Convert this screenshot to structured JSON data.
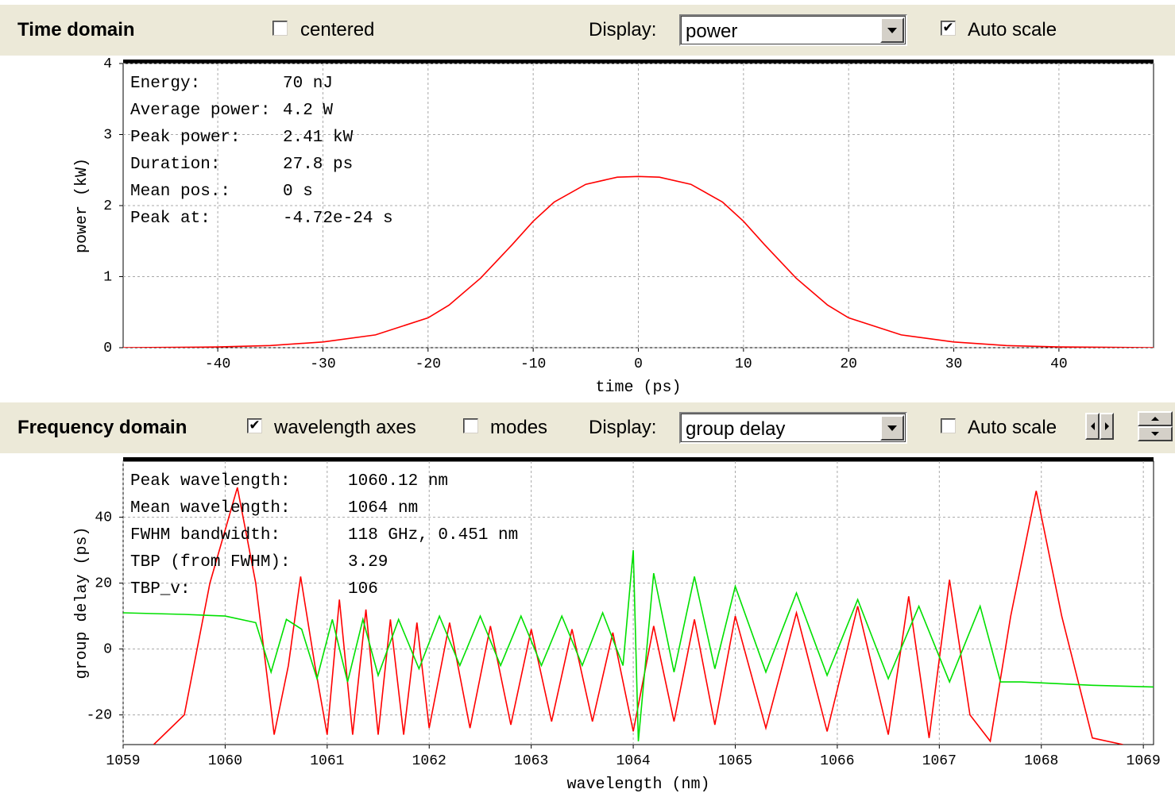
{
  "time_domain": {
    "title": "Time domain",
    "centered": {
      "label": "centered",
      "checked": false
    },
    "display_label": "Display:",
    "display_value": "power",
    "autoscale": {
      "label": "Auto scale",
      "checked": true
    }
  },
  "frequency_domain": {
    "title": "Frequency domain",
    "wavelength_axes": {
      "label": "wavelength axes",
      "checked": true
    },
    "modes": {
      "label": "modes",
      "checked": false
    },
    "display_label": "Display:",
    "display_value": "group delay",
    "autoscale": {
      "label": "Auto scale",
      "checked": false
    },
    "icons": [
      "arrow-left-right-icon",
      "arrow-up-down-icon"
    ]
  },
  "time_info": [
    [
      "Energy:",
      "70 nJ"
    ],
    [
      "Average power:",
      "4.2 W"
    ],
    [
      "Peak power:",
      "2.41 kW"
    ],
    [
      "Duration:",
      "27.8 ps"
    ],
    [
      "Mean pos.:",
      "0 s"
    ],
    [
      "Peak at:",
      "-4.72e-24 s"
    ]
  ],
  "freq_info": [
    [
      "Peak wavelength:",
      "1060.12 nm"
    ],
    [
      "Mean wavelength:",
      "1064 nm"
    ],
    [
      "FWHM bandwidth:",
      "118 GHz, 0.451 nm"
    ],
    [
      "TBP (from FWHM):",
      "3.29"
    ],
    [
      "TBP_v:",
      "106"
    ]
  ],
  "colors": {
    "power_trace": "#ff0000",
    "spectrum_trace": "#ff0000",
    "group_delay_trace": "#00e000",
    "toolbar_bg": "#ece9d8",
    "grid": "#a0a0a0"
  },
  "chart_data": [
    {
      "type": "line",
      "xlabel": "time (ps)",
      "ylabel": "power (kW)",
      "xlim": [
        -49,
        49
      ],
      "ylim": [
        0,
        4
      ],
      "x_ticks": [
        -40,
        -30,
        -20,
        -10,
        0,
        10,
        20,
        30,
        40
      ],
      "y_ticks": [
        0,
        1,
        2,
        3,
        4
      ],
      "grid": true,
      "series": [
        {
          "color": "#ff0000",
          "x": [
            -49,
            -40,
            -35,
            -30,
            -25,
            -20,
            -18,
            -15,
            -12,
            -10,
            -8,
            -5,
            -2,
            0,
            2,
            5,
            8,
            10,
            12,
            15,
            18,
            20,
            25,
            30,
            35,
            40,
            49
          ],
          "y": [
            0,
            0.01,
            0.03,
            0.08,
            0.18,
            0.42,
            0.6,
            0.98,
            1.45,
            1.78,
            2.05,
            2.3,
            2.4,
            2.41,
            2.4,
            2.3,
            2.05,
            1.78,
            1.45,
            0.98,
            0.6,
            0.42,
            0.18,
            0.08,
            0.03,
            0.01,
            0
          ]
        }
      ]
    },
    {
      "type": "line",
      "xlabel": "wavelength (nm)",
      "ylabel": "group delay (ps)",
      "xlim": [
        1059,
        1069.1
      ],
      "ylim": [
        -29,
        57
      ],
      "x_ticks": [
        1059,
        1060,
        1061,
        1062,
        1063,
        1064,
        1065,
        1066,
        1067,
        1068,
        1069
      ],
      "y_ticks": [
        -20,
        0,
        20,
        40
      ],
      "grid": true,
      "series": [
        {
          "color": "#ff0000",
          "x": [
            1059.3,
            1059.6,
            1059.85,
            1060.12,
            1060.3,
            1060.48,
            1060.62,
            1060.74,
            1060.88,
            1061.0,
            1061.12,
            1061.25,
            1061.38,
            1061.5,
            1061.62,
            1061.75,
            1061.88,
            1062.0,
            1062.2,
            1062.4,
            1062.6,
            1062.8,
            1063.0,
            1063.2,
            1063.4,
            1063.6,
            1063.8,
            1064.0,
            1064.2,
            1064.4,
            1064.6,
            1064.8,
            1065.0,
            1065.3,
            1065.6,
            1065.9,
            1066.2,
            1066.5,
            1066.7,
            1066.9,
            1067.1,
            1067.3,
            1067.5,
            1067.7,
            1067.95,
            1068.2,
            1068.5,
            1068.8
          ],
          "y": [
            -29,
            -20,
            20,
            49,
            20,
            -26,
            -5,
            22,
            -5,
            -26,
            15,
            -26,
            12,
            -26,
            9,
            -26,
            8,
            -24,
            8,
            -24,
            7,
            -23,
            6,
            -22,
            6,
            -22,
            5,
            -25,
            7,
            -22,
            9,
            -23,
            10,
            -24,
            11,
            -25,
            13,
            -26,
            16,
            -27,
            21,
            -20,
            -28,
            10,
            48,
            10,
            -27,
            -29
          ]
        },
        {
          "color": "#00e000",
          "x": [
            1059.0,
            1059.6,
            1060.0,
            1060.3,
            1060.45,
            1060.6,
            1060.75,
            1060.9,
            1061.05,
            1061.2,
            1061.35,
            1061.5,
            1061.7,
            1061.9,
            1062.1,
            1062.3,
            1062.5,
            1062.7,
            1062.9,
            1063.1,
            1063.3,
            1063.5,
            1063.7,
            1063.9,
            1064.0,
            1064.05,
            1064.2,
            1064.4,
            1064.6,
            1064.8,
            1065.0,
            1065.3,
            1065.6,
            1065.9,
            1066.2,
            1066.5,
            1066.8,
            1067.1,
            1067.4,
            1067.6,
            1067.8,
            1068.5,
            1069.1
          ],
          "y": [
            11,
            10.5,
            10,
            8,
            -7,
            9,
            6,
            -9,
            9,
            -10,
            9,
            -8,
            9,
            -6,
            10,
            -5,
            10,
            -5,
            10,
            -5,
            10,
            -5,
            11,
            -5,
            30,
            -28,
            23,
            -7,
            22,
            -6,
            19,
            -7,
            17,
            -8,
            15,
            -9,
            13,
            -10,
            13,
            -10,
            -10,
            -11,
            -11.5
          ]
        }
      ]
    }
  ]
}
